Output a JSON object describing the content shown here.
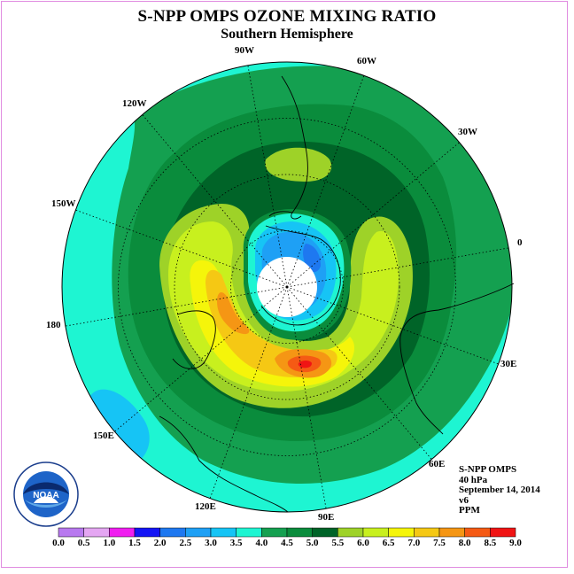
{
  "title": "S-NPP OMPS OZONE MIXING RATIO",
  "subtitle": "Southern Hemisphere",
  "longitude_labels": [
    "90W",
    "60W",
    "30W",
    "0",
    "30E",
    "60E",
    "90E",
    "120E",
    "150E",
    "180",
    "150W",
    "120W"
  ],
  "info": {
    "instrument": "S-NPP OMPS",
    "level": "40 hPa",
    "date": "September 14, 2014",
    "version": "v6",
    "units": "PPM"
  },
  "colorbar": {
    "ticks": [
      "0.0",
      "0.5",
      "1.0",
      "1.5",
      "2.0",
      "2.5",
      "3.0",
      "3.5",
      "4.0",
      "4.5",
      "5.0",
      "5.5",
      "6.0",
      "6.5",
      "7.0",
      "7.5",
      "8.0",
      "8.5",
      "9.0"
    ],
    "colors": [
      "#b879ef",
      "#e4a6f2",
      "#f01ef0",
      "#1414f5",
      "#1e78f0",
      "#1ea0f5",
      "#16c4f5",
      "#1ef5d2",
      "#14a050",
      "#0a8c3c",
      "#006428",
      "#9ed228",
      "#c8f01e",
      "#f5f50a",
      "#f5c814",
      "#f59614",
      "#f55a14",
      "#f01414",
      "#8c5a3c"
    ]
  },
  "logo": {
    "text": "NOAA",
    "ring_text": "NATIONAL OCEANIC AND ATMOSPHERIC ADMINISTRATION · U.S. DEPARTMENT OF COMMERCE"
  }
}
